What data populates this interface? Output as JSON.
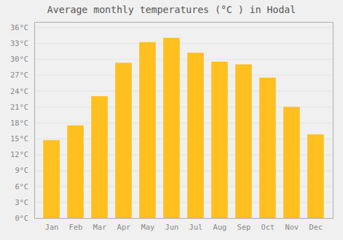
{
  "chart_data": {
    "type": "bar",
    "title": "Average monthly temperatures (°C ) in Hodal",
    "categories": [
      "Jan",
      "Feb",
      "Mar",
      "Apr",
      "May",
      "Jun",
      "Jul",
      "Aug",
      "Sep",
      "Oct",
      "Nov",
      "Dec"
    ],
    "values": [
      14.7,
      17.5,
      23.0,
      29.3,
      33.2,
      34.0,
      31.2,
      29.5,
      29.0,
      26.5,
      21.0,
      15.8
    ],
    "color": "#FFC020",
    "ylim": [
      0,
      37
    ],
    "yticks": [
      {
        "value": 0,
        "label": "0°C"
      },
      {
        "value": 3,
        "label": "3°C"
      },
      {
        "value": 6,
        "label": "6°C"
      },
      {
        "value": 9,
        "label": "9°C"
      },
      {
        "value": 12,
        "label": "12°C"
      },
      {
        "value": 15,
        "label": "15°C"
      },
      {
        "value": 18,
        "label": "18°C"
      },
      {
        "value": 21,
        "label": "21°C"
      },
      {
        "value": 24,
        "label": "24°C"
      },
      {
        "value": 27,
        "label": "27°C"
      },
      {
        "value": 30,
        "label": "30°C"
      },
      {
        "value": 33,
        "label": "33°C"
      },
      {
        "value": 36,
        "label": "36°C"
      }
    ],
    "grid": true
  }
}
